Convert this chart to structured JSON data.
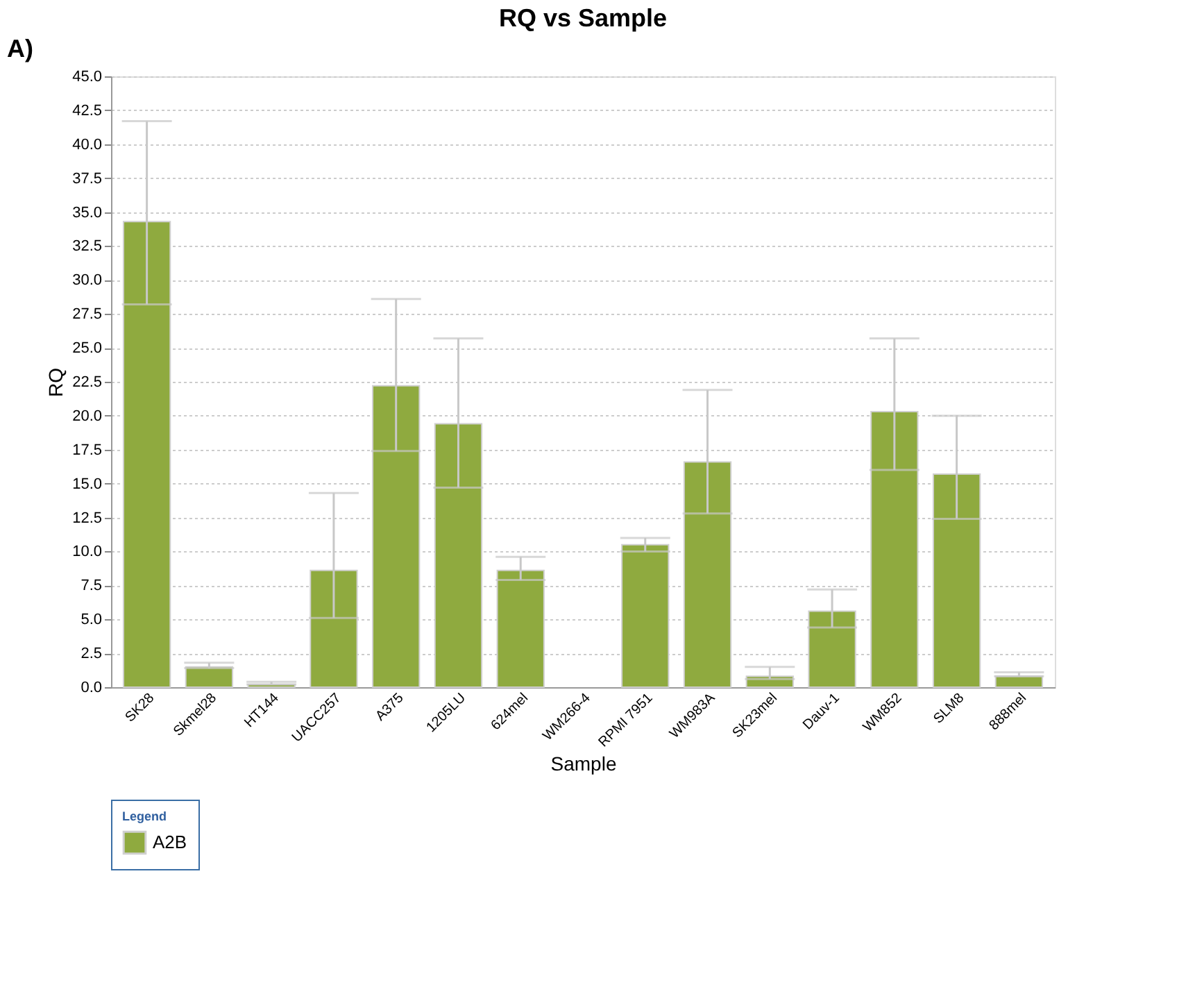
{
  "chart_data": {
    "type": "bar",
    "title": "RQ vs Sample",
    "xlabel": "Sample",
    "ylabel": "RQ",
    "legend_title": "Legend",
    "annotations": [
      "A)"
    ],
    "categories": [
      "SK28",
      "Skmel28",
      "HT144",
      "UACC257",
      "A375",
      "1205LU",
      "624mel",
      "WM266-4",
      "RPMI 7951",
      "WM983A",
      "SK23mel",
      "Dauv-1",
      "WM852",
      "SLM8",
      "888mel"
    ],
    "series": [
      {
        "name": "A2B",
        "color": "#8faa3f",
        "values": [
          34.3,
          1.5,
          0.2,
          8.6,
          22.2,
          19.4,
          8.6,
          null,
          10.5,
          16.6,
          0.8,
          5.6,
          20.3,
          15.7,
          0.8
        ],
        "errors": [
          [
            28.2,
            41.7
          ],
          [
            1.4,
            1.8
          ],
          [
            0.2,
            0.4
          ],
          [
            5.1,
            14.3
          ],
          [
            17.4,
            28.6
          ],
          [
            14.7,
            25.7
          ],
          [
            7.9,
            9.6
          ],
          null,
          [
            10.0,
            11.0
          ],
          [
            12.8,
            21.9
          ],
          [
            0.6,
            1.5
          ],
          [
            4.4,
            7.2
          ],
          [
            16.0,
            25.7
          ],
          [
            12.4,
            20.0
          ],
          [
            0.8,
            1.1
          ]
        ]
      }
    ],
    "ylim": [
      0,
      45
    ],
    "yticks": [
      {
        "value": 0,
        "label": "0.0"
      },
      2.5,
      {
        "value": 5,
        "label": "5.0"
      },
      7.5,
      {
        "value": 10,
        "label": "10.0"
      },
      12.5,
      {
        "value": 15,
        "label": "15.0"
      },
      17.5,
      {
        "value": 20,
        "label": "20.0"
      },
      22.5,
      {
        "value": 25,
        "label": "25.0"
      },
      27.5,
      {
        "value": 30,
        "label": "30.0"
      },
      32.5,
      {
        "value": 35,
        "label": "35.0"
      },
      37.5,
      {
        "value": 40,
        "label": "40.0"
      },
      42.5,
      {
        "value": 45,
        "label": "45.0"
      }
    ],
    "grid": "y",
    "legend": "bottom"
  }
}
